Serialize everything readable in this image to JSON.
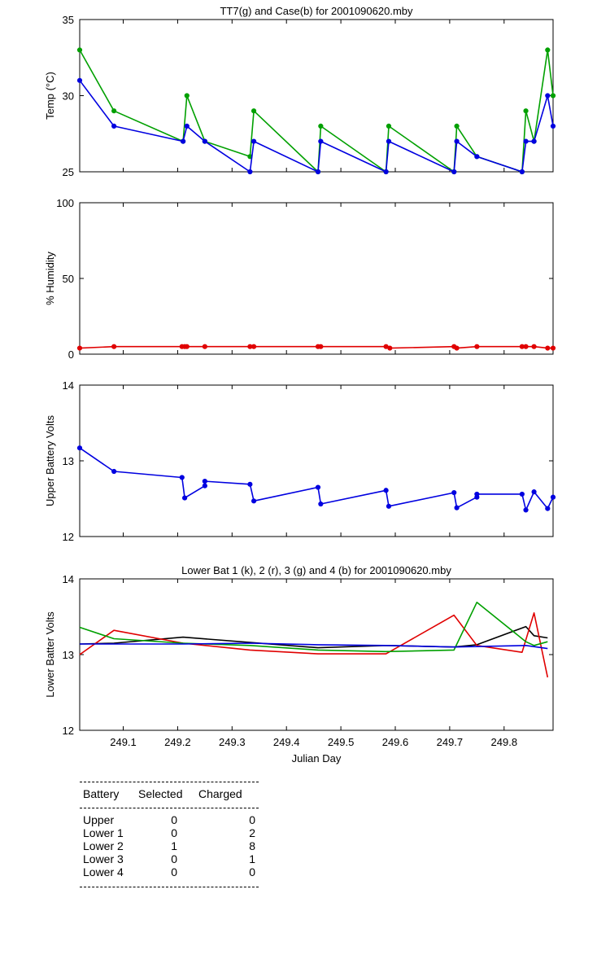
{
  "colors": {
    "green": "#00a000",
    "blue": "#0000e0",
    "red": "#e00000",
    "black": "#000000"
  },
  "x_axis": {
    "xlim": [
      249.02,
      249.89
    ],
    "ticks": [
      249.1,
      249.2,
      249.3,
      249.4,
      249.5,
      249.6,
      249.7,
      249.8
    ],
    "tick_labels": [
      "249.1",
      "249.2",
      "249.3",
      "249.4",
      "249.5",
      "249.6",
      "249.7",
      "249.8"
    ],
    "xlabel": "Julian Day"
  },
  "chart_data": [
    {
      "id": "temp",
      "type": "line",
      "title": "TT7(g) and Case(b) for 2001090620.mby",
      "ylabel": "Temp  (°C)",
      "ylim": [
        25,
        35
      ],
      "yticks": [
        25,
        30,
        35
      ],
      "ytick_labels": [
        "25",
        "30",
        "35"
      ],
      "series": [
        {
          "name": "TT7",
          "color": "green",
          "markers": true,
          "x": [
            249.02,
            249.083,
            249.21,
            249.217,
            249.25,
            249.333,
            249.34,
            249.458,
            249.463,
            249.583,
            249.588,
            249.708,
            249.713,
            249.75,
            249.833,
            249.84,
            249.855,
            249.88,
            249.89
          ],
          "y": [
            33,
            29,
            27,
            30,
            27,
            26,
            29,
            25,
            28,
            25,
            28,
            25,
            28,
            26,
            25,
            29,
            27,
            33,
            30
          ]
        },
        {
          "name": "Case",
          "color": "blue",
          "markers": true,
          "x": [
            249.02,
            249.083,
            249.21,
            249.217,
            249.25,
            249.333,
            249.34,
            249.458,
            249.463,
            249.583,
            249.588,
            249.708,
            249.713,
            249.75,
            249.833,
            249.84,
            249.855,
            249.88,
            249.89
          ],
          "y": [
            31,
            28,
            27,
            28,
            27,
            25,
            27,
            25,
            27,
            25,
            27,
            25,
            27,
            26,
            25,
            27,
            27,
            30,
            28
          ]
        }
      ]
    },
    {
      "id": "humidity",
      "type": "line",
      "title": "",
      "ylabel": "% Humidity",
      "ylim": [
        0,
        100
      ],
      "yticks": [
        0,
        50,
        100
      ],
      "ytick_labels": [
        "0",
        "50",
        "100"
      ],
      "series": [
        {
          "name": "Humidity",
          "color": "red",
          "markers": true,
          "x": [
            249.02,
            249.083,
            249.208,
            249.213,
            249.217,
            249.25,
            249.333,
            249.34,
            249.458,
            249.463,
            249.583,
            249.59,
            249.708,
            249.713,
            249.75,
            249.833,
            249.84,
            249.855,
            249.88,
            249.89
          ],
          "y": [
            4,
            5,
            5,
            5,
            5,
            5,
            5,
            5,
            5,
            5,
            5,
            4,
            5,
            4,
            5,
            5,
            5,
            5,
            4,
            4
          ]
        }
      ]
    },
    {
      "id": "upper",
      "type": "line",
      "title": "",
      "ylabel": "Upper Battery Volts",
      "ylim": [
        12,
        14
      ],
      "yticks": [
        12,
        13,
        14
      ],
      "ytick_labels": [
        "12",
        "13",
        "14"
      ],
      "series": [
        {
          "name": "Upper",
          "color": "blue",
          "markers": true,
          "x": [
            249.02,
            249.083,
            249.208,
            249.213,
            249.25,
            249.25,
            249.333,
            249.34,
            249.458,
            249.463,
            249.583,
            249.588,
            249.708,
            249.713,
            249.75,
            249.75,
            249.833,
            249.84,
            249.855,
            249.88,
            249.89
          ],
          "y": [
            13.17,
            12.86,
            12.78,
            12.51,
            12.67,
            12.73,
            12.69,
            12.47,
            12.65,
            12.43,
            12.61,
            12.4,
            12.58,
            12.38,
            12.52,
            12.56,
            12.56,
            12.35,
            12.59,
            12.37,
            12.52
          ]
        }
      ]
    },
    {
      "id": "lower",
      "type": "line",
      "title": "Lower Bat 1 (k), 2 (r), 3 (g) and 4 (b) for 2001090620.mby",
      "ylabel": "Lower Batter Volts",
      "ylim": [
        12,
        14
      ],
      "yticks": [
        12,
        13,
        14
      ],
      "ytick_labels": [
        "12",
        "13",
        "14"
      ],
      "series": [
        {
          "name": "Lower Bat 1",
          "color": "black",
          "markers": false,
          "x": [
            249.02,
            249.083,
            249.21,
            249.333,
            249.458,
            249.583,
            249.708,
            249.75,
            249.84,
            249.855,
            249.88
          ],
          "y": [
            13.14,
            13.15,
            13.23,
            13.16,
            13.09,
            13.12,
            13.1,
            13.13,
            13.37,
            13.25,
            13.22
          ]
        },
        {
          "name": "Lower Bat 2",
          "color": "red",
          "markers": false,
          "x": [
            249.02,
            249.083,
            249.21,
            249.333,
            249.458,
            249.583,
            249.708,
            249.75,
            249.833,
            249.855,
            249.88
          ],
          "y": [
            13.0,
            13.32,
            13.15,
            13.06,
            13.01,
            13.01,
            13.52,
            13.12,
            13.03,
            13.55,
            12.7
          ]
        },
        {
          "name": "Lower Bat 3",
          "color": "green",
          "markers": false,
          "x": [
            249.02,
            249.083,
            249.21,
            249.333,
            249.458,
            249.583,
            249.708,
            249.75,
            249.84,
            249.855,
            249.88
          ],
          "y": [
            13.36,
            13.21,
            13.15,
            13.12,
            13.06,
            13.04,
            13.06,
            13.69,
            13.17,
            13.12,
            13.17
          ]
        },
        {
          "name": "Lower Bat 4",
          "color": "blue",
          "markers": false,
          "x": [
            249.02,
            249.21,
            249.333,
            249.458,
            249.583,
            249.708,
            249.84,
            249.88
          ],
          "y": [
            13.14,
            13.14,
            13.15,
            13.13,
            13.12,
            13.1,
            13.12,
            13.08
          ]
        }
      ]
    }
  ],
  "battery_table": {
    "headers": [
      "Battery",
      "Selected",
      "Charged"
    ],
    "rows": [
      {
        "battery": "Upper",
        "selected": "0",
        "charged": "0"
      },
      {
        "battery": "Lower 1",
        "selected": "0",
        "charged": "2"
      },
      {
        "battery": "Lower 2",
        "selected": "1",
        "charged": "8"
      },
      {
        "battery": "Lower 3",
        "selected": "0",
        "charged": "1"
      },
      {
        "battery": "Lower 4",
        "selected": "0",
        "charged": "0"
      }
    ]
  }
}
